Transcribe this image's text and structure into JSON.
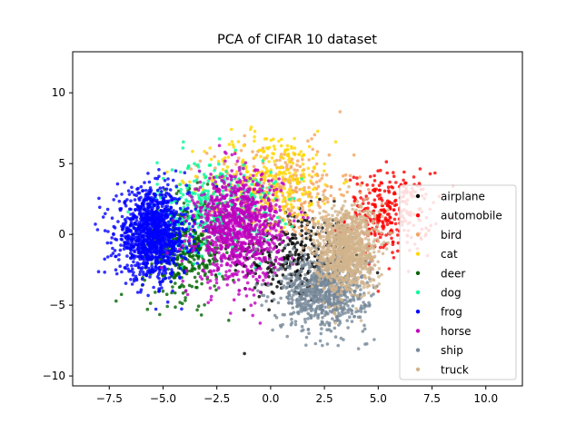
{
  "chart_data": {
    "type": "scatter",
    "title": "PCA of CIFAR 10 dataset",
    "xlabel": "",
    "ylabel": "",
    "xlim": [
      -9.2,
      11.7
    ],
    "ylim": [
      -10.7,
      12.9
    ],
    "x_ticks": [
      -7.5,
      -5.0,
      -2.5,
      0.0,
      2.5,
      5.0,
      7.5,
      10.0
    ],
    "x_tick_labels": [
      "−7.5",
      "−5.0",
      "−2.5",
      "0.0",
      "2.5",
      "5.0",
      "7.5",
      "10.0"
    ],
    "y_ticks": [
      -10,
      -5,
      0,
      5,
      10
    ],
    "y_tick_labels": [
      "−10",
      "−5",
      "0",
      "5",
      "10"
    ],
    "grid": false,
    "legend_position": "lower-right",
    "series": [
      {
        "name": "airplane",
        "color": "#000000",
        "center": [
          1.0,
          -1.5
        ],
        "spread": [
          2.6,
          3.0
        ],
        "count": 320
      },
      {
        "name": "automobile",
        "color": "#ff0000",
        "center": [
          5.5,
          1.5
        ],
        "spread": [
          1.8,
          2.6
        ],
        "count": 320
      },
      {
        "name": "bird",
        "color": "#f4a460",
        "center": [
          0.5,
          3.0
        ],
        "spread": [
          3.0,
          3.0
        ],
        "count": 300
      },
      {
        "name": "cat",
        "color": "#ffd700",
        "center": [
          0.0,
          4.0
        ],
        "spread": [
          2.8,
          3.0
        ],
        "count": 300
      },
      {
        "name": "deer",
        "color": "#006400",
        "center": [
          -4.0,
          -1.0
        ],
        "spread": [
          1.8,
          3.2
        ],
        "count": 420
      },
      {
        "name": "dog",
        "color": "#00fa9a",
        "center": [
          -2.5,
          2.0
        ],
        "spread": [
          2.5,
          3.0
        ],
        "count": 360
      },
      {
        "name": "frog",
        "color": "#0000ff",
        "center": [
          -5.5,
          0.0
        ],
        "spread": [
          1.5,
          2.8
        ],
        "count": 1200
      },
      {
        "name": "horse",
        "color": "#bf00bf",
        "center": [
          -1.5,
          0.5
        ],
        "spread": [
          1.8,
          3.5
        ],
        "count": 1000
      },
      {
        "name": "ship",
        "color": "#778899",
        "center": [
          2.5,
          -4.0
        ],
        "spread": [
          1.8,
          2.5
        ],
        "count": 800
      },
      {
        "name": "truck",
        "color": "#d2b48c",
        "center": [
          3.5,
          -1.0
        ],
        "spread": [
          1.3,
          2.7
        ],
        "count": 1000
      }
    ]
  }
}
